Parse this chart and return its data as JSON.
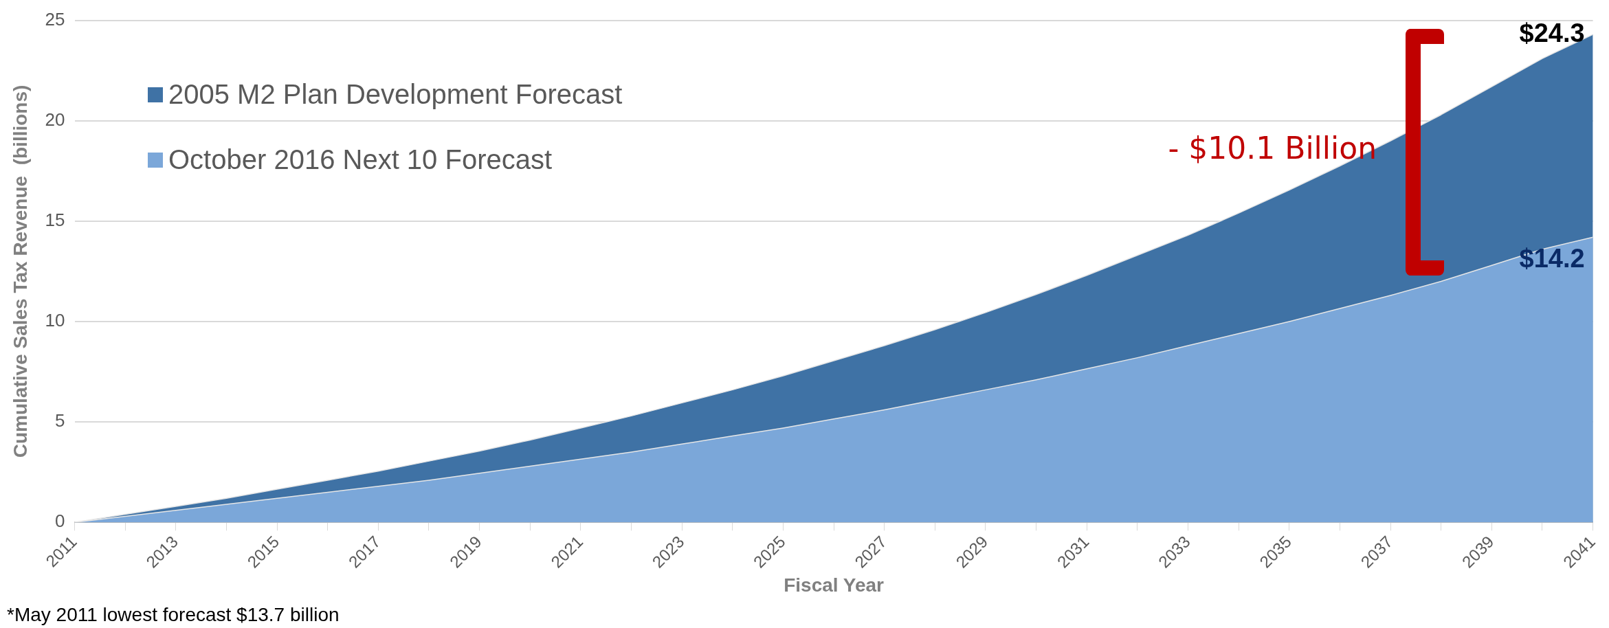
{
  "chart_data": {
    "type": "area",
    "xlabel": "Fiscal Year",
    "ylabel": "Cumulative Sales Tax Revenue  (billions)",
    "x": [
      2011,
      2012,
      2013,
      2014,
      2015,
      2016,
      2017,
      2018,
      2019,
      2020,
      2021,
      2022,
      2023,
      2024,
      2025,
      2026,
      2027,
      2028,
      2029,
      2030,
      2031,
      2032,
      2033,
      2034,
      2035,
      2036,
      2037,
      2038,
      2039,
      2040,
      2041
    ],
    "series": [
      {
        "name": "2005 M2 Plan Development Forecast",
        "color": "#3f72a5",
        "values": [
          0,
          0.4,
          0.8,
          1.2,
          1.65,
          2.1,
          2.55,
          3.05,
          3.55,
          4.1,
          4.7,
          5.3,
          5.95,
          6.6,
          7.3,
          8.05,
          8.8,
          9.6,
          10.45,
          11.35,
          12.3,
          13.3,
          14.3,
          15.4,
          16.55,
          17.75,
          19.0,
          20.3,
          21.7,
          23.1,
          24.3
        ],
        "value_labels": [
          null,
          null,
          null,
          null,
          null,
          null,
          null,
          null,
          null,
          null,
          null,
          null,
          null,
          null,
          null,
          null,
          null,
          null,
          null,
          null,
          null,
          null,
          null,
          null,
          null,
          null,
          null,
          null,
          null,
          null,
          "$24.3"
        ]
      },
      {
        "name": "October 2016 Next 10 Forecast",
        "color": "#7ba7d9",
        "values": [
          0,
          0.3,
          0.6,
          0.9,
          1.2,
          1.5,
          1.8,
          2.1,
          2.45,
          2.8,
          3.15,
          3.5,
          3.9,
          4.3,
          4.7,
          5.15,
          5.6,
          6.1,
          6.6,
          7.1,
          7.65,
          8.2,
          8.8,
          9.4,
          10.0,
          10.65,
          11.3,
          12.0,
          12.8,
          13.6,
          14.2
        ],
        "value_labels": [
          null,
          null,
          null,
          null,
          null,
          null,
          null,
          null,
          null,
          null,
          null,
          null,
          null,
          null,
          null,
          null,
          null,
          null,
          null,
          null,
          null,
          null,
          null,
          null,
          null,
          null,
          null,
          null,
          null,
          null,
          "$14.2"
        ]
      }
    ],
    "xlim": [
      2011,
      2041
    ],
    "xticks": [
      2011,
      {
        "value": 2012,
        "label": null
      },
      2013,
      {
        "value": 2014,
        "label": null
      },
      2015,
      {
        "value": 2016,
        "label": null
      },
      2017,
      {
        "value": 2018,
        "label": null
      },
      2019,
      {
        "value": 2020,
        "label": null
      },
      2021,
      {
        "value": 2022,
        "label": null
      },
      2023,
      {
        "value": 2024,
        "label": null
      },
      2025,
      {
        "value": 2026,
        "label": null
      },
      2027,
      {
        "value": 2028,
        "label": null
      },
      2029,
      {
        "value": 2030,
        "label": null
      },
      2031,
      {
        "value": 2032,
        "label": null
      },
      2033,
      {
        "value": 2034,
        "label": null
      },
      2035,
      {
        "value": 2036,
        "label": null
      },
      2037,
      {
        "value": 2038,
        "label": null
      },
      2039,
      {
        "value": 2040,
        "label": null
      },
      2041
    ],
    "ylim": [
      0,
      25
    ],
    "yticks": [
      0,
      5,
      10,
      15,
      20,
      25
    ],
    "grid": "y",
    "legend": "top left",
    "marker": "none",
    "annotations": [
      "- $10.1 Billion",
      "*May 2011 lowest forecast $13.7 billion"
    ]
  }
}
